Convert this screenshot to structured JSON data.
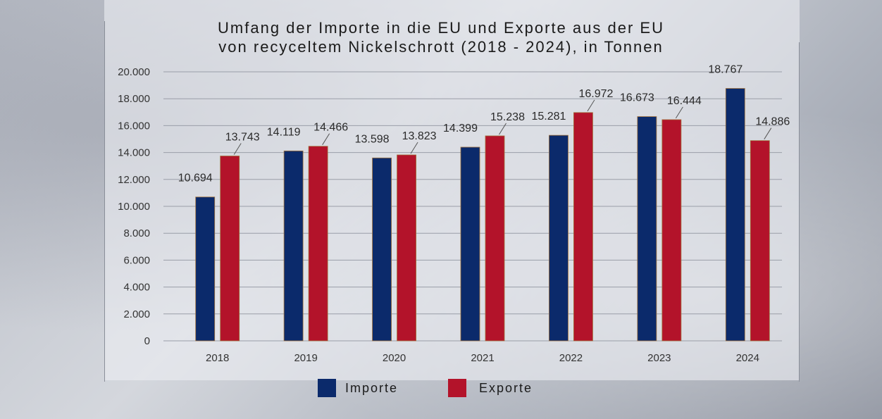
{
  "chart_data": {
    "type": "bar",
    "title_lines": [
      "Umfang der Importe in die EU und Exporte aus der EU",
      "von recyceltem Nickelschrott (2018 - 2024), in Tonnen"
    ],
    "categories": [
      "2018",
      "2019",
      "2020",
      "2021",
      "2022",
      "2023",
      "2024"
    ],
    "series": [
      {
        "name": "Importe",
        "color": "#0b2a6b",
        "values": [
          10694,
          14119,
          13598,
          14399,
          15281,
          16673,
          18767
        ],
        "labels": [
          "10.694",
          "14.119",
          "13.598",
          "14.399",
          "15.281",
          "16.673",
          "18.767"
        ]
      },
      {
        "name": "Exporte",
        "color": "#b3132a",
        "values": [
          13743,
          14466,
          13823,
          15238,
          16972,
          16444,
          14886
        ],
        "labels": [
          "13.743",
          "14.466",
          "13.823",
          "15.238",
          "16.972",
          "16.444",
          "14.886"
        ]
      }
    ],
    "ylim": [
      0,
      20000
    ],
    "yticks": [
      0,
      2000,
      4000,
      6000,
      8000,
      10000,
      12000,
      14000,
      16000,
      18000,
      20000
    ],
    "ytick_labels": [
      "0",
      "2.000",
      "4.000",
      "6.000",
      "8.000",
      "10.000",
      "12.000",
      "14.000",
      "16.000",
      "18.000",
      "20.000"
    ],
    "grid": true,
    "legend_position": "bottom-center"
  }
}
